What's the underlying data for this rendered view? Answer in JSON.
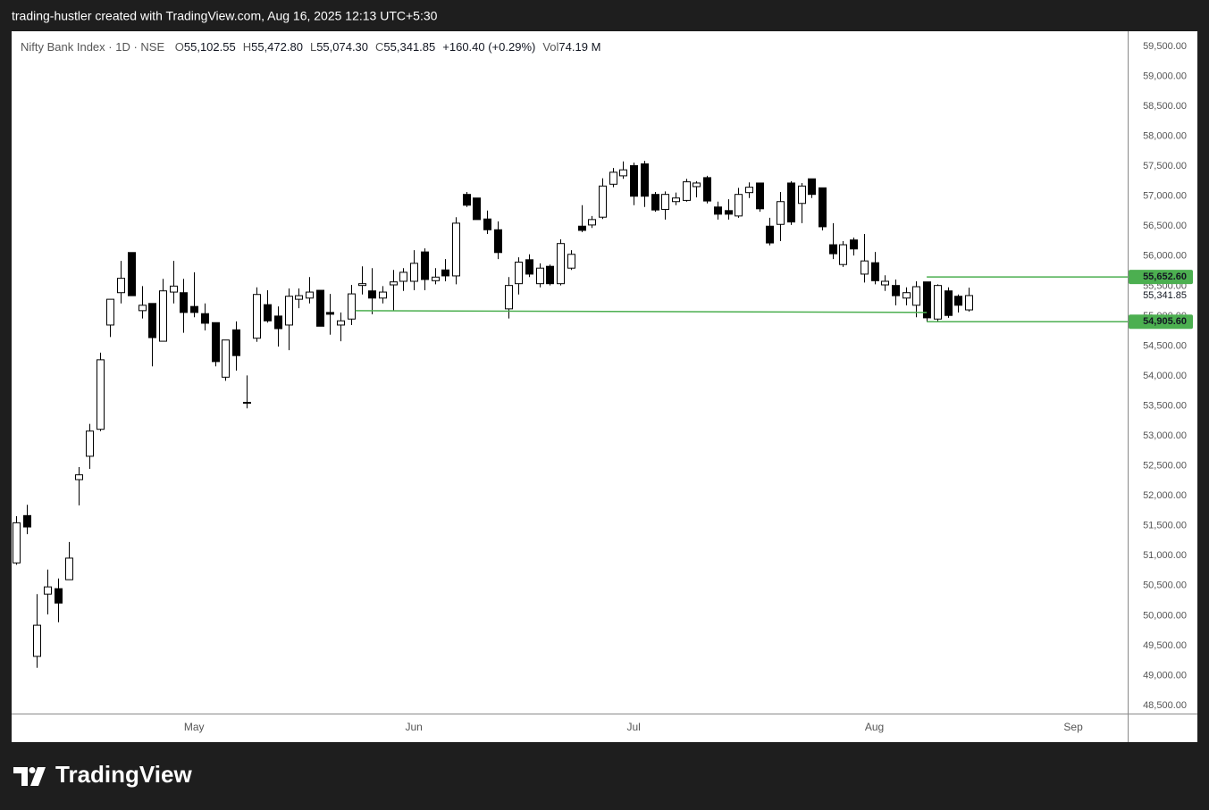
{
  "header": {
    "attribution": "trading-hustler created with TradingView.com, Aug 16, 2025 12:13 UTC+5:30"
  },
  "footer": {
    "logo": "TradingView"
  },
  "chart_data": {
    "type": "candlestick",
    "title": "Nifty Bank Index · 1D · NSE",
    "ohlc_legend": [
      {
        "key": "O",
        "text": "55,102.55"
      },
      {
        "key": "H",
        "text": "55,472.80"
      },
      {
        "key": "L",
        "text": "55,074.30"
      },
      {
        "key": "C",
        "text": "55,341.85"
      }
    ],
    "change": "+160.40 (+0.29%)",
    "volume": {
      "key": "Vol",
      "text": "74.19 M"
    },
    "up_color": "#ffffff",
    "down_color": "#000000",
    "border_color": "#000000",
    "open": [
      50880,
      51670,
      49320,
      50360,
      50450,
      50600,
      52270,
      52660,
      53110,
      54850,
      55390,
      56060,
      55090,
      55210,
      54580,
      55400,
      55390,
      55160,
      55040,
      54890,
      53980,
      54770,
      53550,
      54630,
      55190,
      55000,
      54850,
      55280,
      55300,
      55430,
      55060,
      54850,
      54950,
      55510,
      55420,
      55300,
      55520,
      55580,
      55580,
      56070,
      55590,
      55770,
      55670,
      57030,
      56970,
      56620,
      56440,
      55120,
      55540,
      55940,
      55540,
      55830,
      55540,
      55800,
      56500,
      56520,
      56650,
      57200,
      57340,
      57510,
      57540,
      57030,
      56780,
      56910,
      56930,
      57160,
      57310,
      56820,
      56760,
      56670,
      57060,
      57220,
      56500,
      56530,
      57220,
      56880,
      57290,
      57140,
      56190,
      55860,
      56270,
      55700,
      55890,
      55520,
      55510,
      55300,
      55180,
      55570,
      54950,
      55420,
      55330,
      55102.55
    ],
    "high": [
      51660,
      51850,
      50360,
      50770,
      50620,
      51230,
      52480,
      53200,
      54390,
      55280,
      55920,
      56060,
      55500,
      55210,
      55620,
      55920,
      55620,
      55730,
      55210,
      54890,
      54600,
      54910,
      54010,
      55480,
      55430,
      55160,
      55460,
      55460,
      55650,
      55430,
      55370,
      55060,
      55520,
      55830,
      55800,
      55500,
      55770,
      55800,
      56100,
      56130,
      55800,
      55950,
      56650,
      57070,
      56970,
      56760,
      56580,
      55650,
      55980,
      56030,
      55880,
      55860,
      56280,
      56100,
      56850,
      56670,
      57300,
      57470,
      57580,
      57560,
      57590,
      57070,
      57080,
      57060,
      57290,
      57250,
      57340,
      56910,
      56950,
      57140,
      57230,
      57220,
      56640,
      57070,
      57250,
      57220,
      57290,
      57140,
      56550,
      56250,
      56310,
      56370,
      56070,
      55680,
      55610,
      55480,
      55580,
      55570,
      55530,
      55480,
      55360,
      55472.8
    ],
    "low": [
      50850,
      51360,
      49130,
      50020,
      49890,
      50600,
      51840,
      52450,
      53080,
      54650,
      55210,
      55340,
      54960,
      54160,
      54580,
      55210,
      54720,
      54980,
      54760,
      54160,
      53920,
      54090,
      53460,
      54570,
      54890,
      54490,
      54430,
      55130,
      55210,
      54830,
      54690,
      54580,
      54850,
      55360,
      55030,
      55210,
      55090,
      55420,
      55430,
      55430,
      55530,
      55580,
      55530,
      56820,
      56610,
      56370,
      55950,
      54960,
      55360,
      55650,
      55480,
      55510,
      55510,
      55770,
      56400,
      56470,
      56620,
      57150,
      57290,
      56850,
      56820,
      56740,
      56610,
      56850,
      56910,
      56980,
      56880,
      56610,
      56610,
      56640,
      56970,
      56740,
      56180,
      56250,
      56520,
      56550,
      56970,
      56430,
      55950,
      55820,
      56010,
      55560,
      55530,
      55420,
      55180,
      55180,
      54980,
      54910,
      54910,
      54970,
      55060,
      55074.3
    ],
    "close": [
      51550,
      51480,
      49840,
      50480,
      50210,
      50960,
      52350,
      53080,
      54270,
      55280,
      55630,
      55340,
      55180,
      54640,
      55420,
      55500,
      55060,
      55060,
      54880,
      54240,
      54600,
      54340,
      53560,
      55360,
      54920,
      54790,
      55330,
      55340,
      55400,
      54830,
      55030,
      54920,
      55370,
      55540,
      55300,
      55400,
      55570,
      55730,
      55880,
      55610,
      55650,
      55670,
      56550,
      56850,
      56610,
      56440,
      56060,
      55510,
      55900,
      55700,
      55800,
      55540,
      56210,
      56030,
      56430,
      56610,
      57170,
      57400,
      57440,
      57000,
      57000,
      56770,
      57030,
      56970,
      57240,
      57220,
      56920,
      56700,
      56700,
      57030,
      57150,
      56790,
      56220,
      56910,
      56570,
      57170,
      57030,
      56490,
      56040,
      56190,
      56120,
      55920,
      55590,
      55580,
      55340,
      55390,
      55490,
      54970,
      55510,
      55010,
      55180,
      55341.85
    ],
    "xlim": [
      -0.43,
      106.2
    ],
    "xticks": [
      {
        "value": 17,
        "label": "May"
      },
      {
        "value": 38,
        "label": "Jun"
      },
      {
        "value": 59,
        "label": "Jul"
      },
      {
        "value": 82,
        "label": "Aug"
      },
      {
        "value": 101,
        "label": "Sep"
      }
    ],
    "ylim": [
      48351,
      59753
    ],
    "yticks": [
      {
        "value": 48500,
        "label": "48,500.00"
      },
      {
        "value": 49000,
        "label": "49,000.00"
      },
      {
        "value": 49500,
        "label": "49,500.00"
      },
      {
        "value": 50000,
        "label": "50,000.00"
      },
      {
        "value": 50500,
        "label": "50,500.00"
      },
      {
        "value": 51000,
        "label": "51,000.00"
      },
      {
        "value": 51500,
        "label": "51,500.00"
      },
      {
        "value": 52000,
        "label": "52,000.00"
      },
      {
        "value": 52500,
        "label": "52,500.00"
      },
      {
        "value": 53000,
        "label": "53,000.00"
      },
      {
        "value": 53500,
        "label": "53,500.00"
      },
      {
        "value": 54000,
        "label": "54,000.00"
      },
      {
        "value": 54500,
        "label": "54,500.00"
      },
      {
        "value": 55000,
        "label": "55,000.00"
      },
      {
        "value": 55500,
        "label": "55,500.00"
      },
      {
        "value": 56000,
        "label": "56,000.00"
      },
      {
        "value": 56500,
        "label": "56,500.00"
      },
      {
        "value": 57000,
        "label": "57,000.00"
      },
      {
        "value": 57500,
        "label": "57,500.00"
      },
      {
        "value": 58000,
        "label": "58,000.00"
      },
      {
        "value": 58500,
        "label": "58,500.00"
      },
      {
        "value": 59000,
        "label": "59,000.00"
      },
      {
        "value": 59500,
        "label": "59,500.00"
      }
    ],
    "lines": [
      {
        "x": [
          32.4,
          87
        ],
        "y": [
          55090,
          55060
        ],
        "color": "#4caf50"
      }
    ],
    "levels": [
      {
        "value": 55652.6,
        "label": "55,652.60",
        "x_start": 87,
        "color": "#4caf50"
      },
      {
        "value": 54905.6,
        "label": "54,905.60",
        "x_start": 87,
        "color": "#4caf50"
      }
    ],
    "last_price": {
      "value": 55341.85,
      "label": "55,341.85"
    }
  }
}
